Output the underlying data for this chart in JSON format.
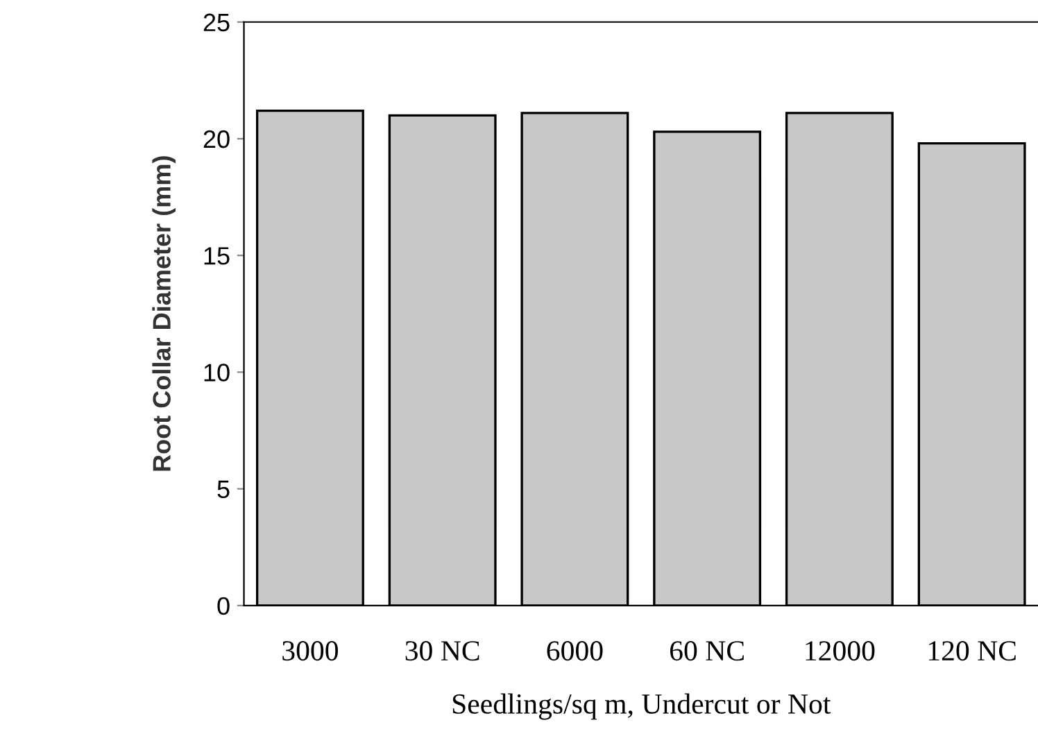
{
  "chart_data": {
    "type": "bar",
    "xlabel": "Seedlings/sq m, Undercut or Not",
    "ylabel": "Root Collar Diameter (mm)",
    "categories": [
      "3000",
      "30 NC",
      "6000",
      "60 NC",
      "12000",
      "120 NC"
    ],
    "values": [
      21.2,
      21.0,
      21.1,
      20.3,
      21.1,
      19.8
    ],
    "color": "#c8c8c8",
    "ylim": [
      0,
      25
    ],
    "yticks": [
      0,
      5,
      10,
      15,
      20,
      25
    ],
    "grid": false
  }
}
